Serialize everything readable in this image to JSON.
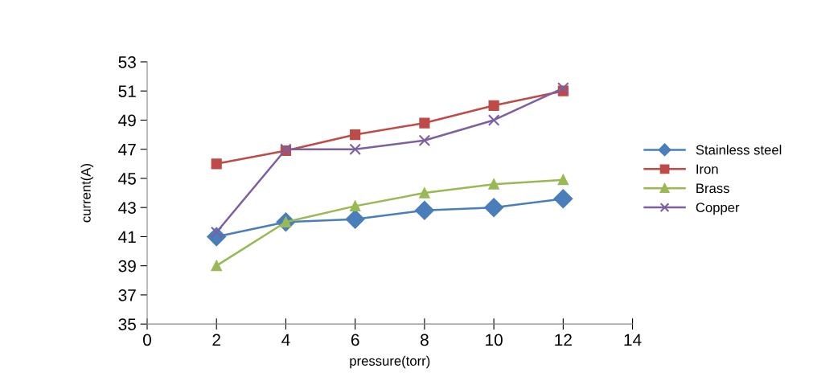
{
  "chart_data": {
    "type": "line",
    "xlabel": "pressure(torr)",
    "ylabel": "current(A)",
    "x": [
      2,
      4,
      6,
      8,
      10,
      12
    ],
    "series": [
      {
        "name": "Stainless steel",
        "color": "#4a7ebb",
        "marker": "diamond",
        "values": [
          41,
          42,
          42.2,
          42.8,
          43,
          43.6
        ]
      },
      {
        "name": "Iron",
        "color": "#be4b48",
        "marker": "square",
        "values": [
          46,
          46.9,
          48,
          48.8,
          50,
          51
        ]
      },
      {
        "name": "Brass",
        "color": "#98b954",
        "marker": "triangle",
        "values": [
          39,
          42,
          43.1,
          44,
          44.6,
          44.9
        ]
      },
      {
        "name": "Copper",
        "color": "#7d60a0",
        "marker": "cross",
        "values": [
          41.3,
          47,
          47,
          47.6,
          49,
          51.2
        ]
      }
    ],
    "xlim": [
      0,
      14
    ],
    "xticks": [
      0,
      2,
      4,
      6,
      8,
      10,
      12,
      14
    ],
    "ylim": [
      35,
      53
    ],
    "yticks": [
      35,
      37,
      39,
      41,
      43,
      45,
      47,
      49,
      51,
      53
    ],
    "grid": false,
    "legend": "right",
    "line_style": "solid"
  }
}
